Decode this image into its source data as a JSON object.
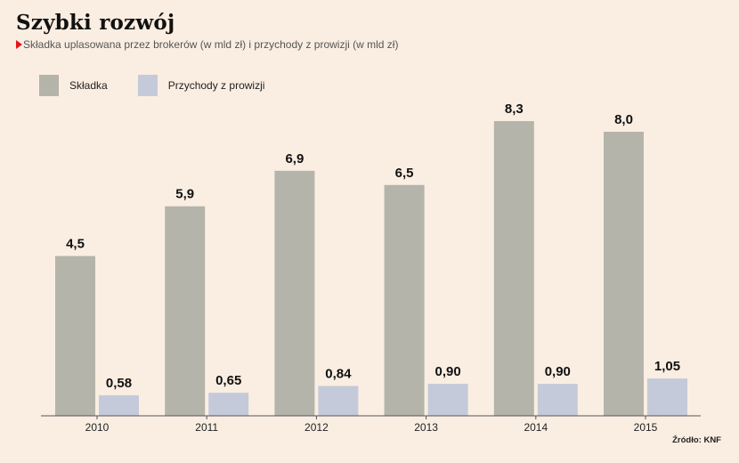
{
  "header": {
    "title": "Szybki rozwój",
    "subtitle": "Składka uplasowana przez brokerów (w mld zł) i przychody z prowizji (w mld zł)"
  },
  "legend": [
    {
      "label": "Składka",
      "color": "#b4b4aa"
    },
    {
      "label": "Przychody z prowizji",
      "color": "#c4cad9"
    }
  ],
  "source": "Źródło: KNF",
  "colors": {
    "background": "#faeee2",
    "accent": "#e3151a",
    "skladka": "#b4b4aa",
    "przychody": "#c4cad9",
    "axis": "#555555"
  },
  "chart_data": {
    "type": "bar",
    "title": "Szybki rozwój",
    "subtitle": "Składka uplasowana przez brokerów (w mld zł) i przychody z prowizji (w mld zł)",
    "categories": [
      "2010",
      "2011",
      "2012",
      "2013",
      "2014",
      "2015"
    ],
    "series": [
      {
        "name": "Składka",
        "values": [
          4.5,
          5.9,
          6.9,
          6.5,
          8.3,
          8.0
        ],
        "labels": [
          "4,5",
          "5,9",
          "6,9",
          "6,5",
          "8,3",
          "8,0"
        ],
        "color": "#b4b4aa"
      },
      {
        "name": "Przychody z prowizji",
        "values": [
          0.58,
          0.65,
          0.84,
          0.9,
          0.9,
          1.05
        ],
        "labels": [
          "0,58",
          "0,65",
          "0,84",
          "0,90",
          "0,90",
          "1,05"
        ],
        "color": "#c4cad9"
      }
    ],
    "xlabel": "",
    "ylabel": "",
    "ylim": [
      0,
      9
    ],
    "grid": false,
    "legend_position": "top-left"
  }
}
